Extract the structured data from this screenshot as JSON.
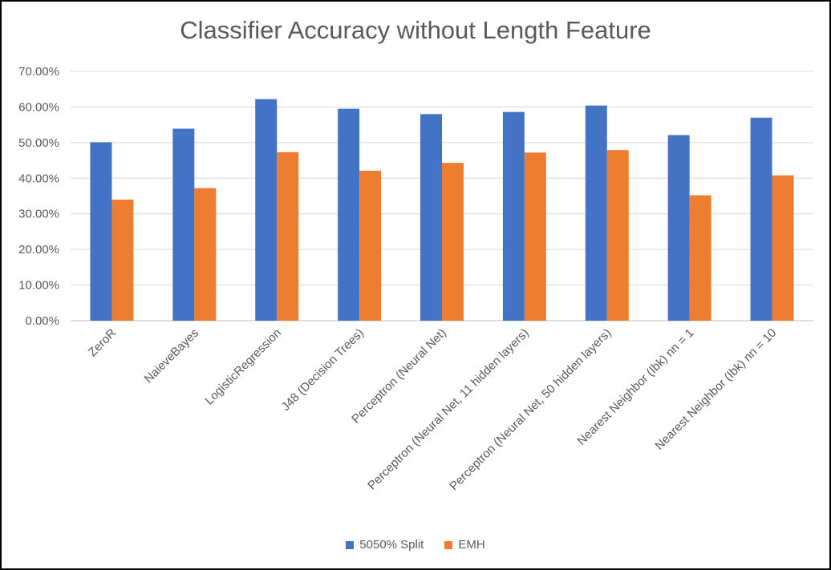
{
  "chart_data": {
    "type": "bar",
    "title": "Classifier Accuracy without Length Feature",
    "xlabel": "",
    "ylabel": "",
    "ylim": [
      0,
      0.7
    ],
    "yticks": [
      {
        "value": 0.0,
        "label": "0.00%"
      },
      {
        "value": 0.1,
        "label": "10.00%"
      },
      {
        "value": 0.2,
        "label": "20.00%"
      },
      {
        "value": 0.3,
        "label": "30.00%"
      },
      {
        "value": 0.4,
        "label": "40.00%"
      },
      {
        "value": 0.5,
        "label": "50.00%"
      },
      {
        "value": 0.6,
        "label": "60.00%"
      },
      {
        "value": 0.7,
        "label": "70.00%"
      }
    ],
    "grid": true,
    "legend_position": "bottom",
    "categories": [
      "ZeroR",
      "NaieveBayes",
      "LogisticRegression",
      "J48 (Decision Trees)",
      "Perceptron (Neural Net)",
      "Perceptron (Neural Net, 11 hidden layers)",
      "Perceptron (Neural Net, 50 hidden layers)",
      "Nearest Neighbor (Ibk) nn = 1",
      "Nearest Neighbor (Ibk) nn = 10"
    ],
    "series": [
      {
        "name": "5050% Split",
        "color": "#4472C4",
        "values": [
          0.501,
          0.539,
          0.622,
          0.595,
          0.58,
          0.586,
          0.604,
          0.521,
          0.57
        ]
      },
      {
        "name": "EMH",
        "color": "#ED7D31",
        "values": [
          0.34,
          0.372,
          0.473,
          0.421,
          0.443,
          0.472,
          0.479,
          0.352,
          0.408
        ]
      }
    ]
  }
}
